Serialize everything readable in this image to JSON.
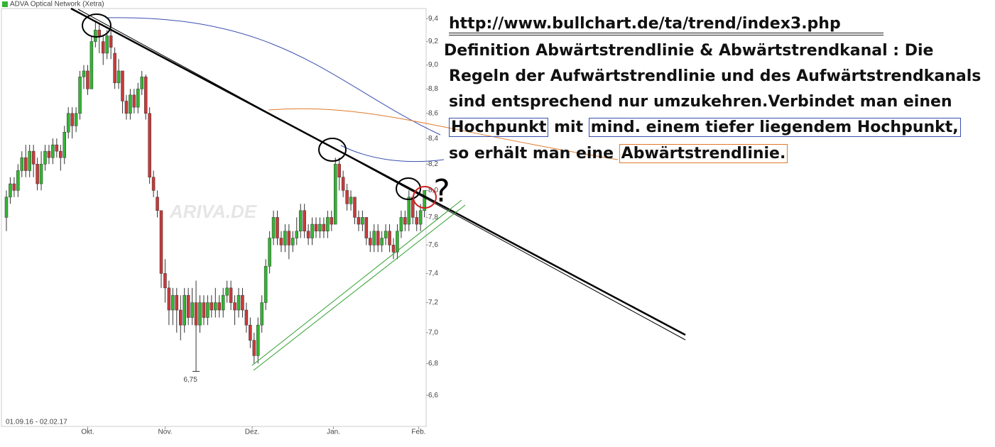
{
  "chart_data": {
    "type": "candlestick",
    "title": "ADVA Optical Network (Xetra)",
    "subtitle": "01.09.16 - 02.02.17",
    "watermark": "ARIVA.DE",
    "log_scale": true,
    "grid": false,
    "up_color": "#33b533",
    "down_color": "#c83a3a",
    "open": [
      7.8,
      7.95,
      8.05,
      8.0,
      8.15,
      8.25,
      8.15,
      8.3,
      8.2,
      8.05,
      8.2,
      8.3,
      8.25,
      8.35,
      8.3,
      8.25,
      8.45,
      8.6,
      8.5,
      8.6,
      8.9,
      8.95,
      8.8,
      9.2,
      9.3,
      9.2,
      9.1,
      9.25,
      9.1,
      8.85,
      8.95,
      8.7,
      8.6,
      8.75,
      8.65,
      8.8,
      8.9,
      8.6,
      8.1,
      7.95,
      7.85,
      7.4,
      7.3,
      7.15,
      7.25,
      7.15,
      7.05,
      7.25,
      7.1,
      7.2,
      7.05,
      7.2,
      7.1,
      7.2,
      7.15,
      7.2,
      7.15,
      7.25,
      7.3,
      7.2,
      7.15,
      7.25,
      7.15,
      7.05,
      6.95,
      6.85,
      7.05,
      7.2,
      7.45,
      7.65,
      7.8,
      7.65,
      7.6,
      7.7,
      7.6,
      7.65,
      7.7,
      7.85,
      7.7,
      7.65,
      7.75,
      7.7,
      7.75,
      7.7,
      7.8,
      7.75,
      8.2,
      8.1,
      8.0,
      7.9,
      7.95,
      7.8,
      7.75,
      7.8,
      7.65,
      7.6,
      7.7,
      7.6,
      7.65,
      7.7,
      7.6,
      7.55,
      7.7,
      7.8,
      7.75,
      7.95,
      7.8,
      7.75,
      7.85
    ],
    "close": [
      7.95,
      8.05,
      8.0,
      8.15,
      8.25,
      8.15,
      8.3,
      8.2,
      8.05,
      8.2,
      8.3,
      8.25,
      8.35,
      8.3,
      8.25,
      8.45,
      8.6,
      8.5,
      8.6,
      8.9,
      8.95,
      8.8,
      9.2,
      9.3,
      9.25,
      9.1,
      9.25,
      9.15,
      8.85,
      8.95,
      8.7,
      8.6,
      8.75,
      8.65,
      8.8,
      8.9,
      8.6,
      8.1,
      8.0,
      7.85,
      7.4,
      7.3,
      7.15,
      7.25,
      7.15,
      7.05,
      7.25,
      7.1,
      7.2,
      7.05,
      7.2,
      7.1,
      7.2,
      7.15,
      7.2,
      7.15,
      7.25,
      7.3,
      7.2,
      7.15,
      7.25,
      7.15,
      7.05,
      6.95,
      6.85,
      7.05,
      7.2,
      7.45,
      7.65,
      7.8,
      7.65,
      7.6,
      7.7,
      7.6,
      7.65,
      7.7,
      7.85,
      7.7,
      7.65,
      7.75,
      7.7,
      7.75,
      7.7,
      7.8,
      7.75,
      8.2,
      8.1,
      8.0,
      7.9,
      7.95,
      7.8,
      7.75,
      7.8,
      7.65,
      7.6,
      7.7,
      7.6,
      7.65,
      7.7,
      7.6,
      7.55,
      7.7,
      7.8,
      7.75,
      7.95,
      7.8,
      7.75,
      7.85,
      8.0
    ],
    "high": [
      8.0,
      8.1,
      8.1,
      8.2,
      8.3,
      8.35,
      8.35,
      8.35,
      8.25,
      8.3,
      8.35,
      8.35,
      8.4,
      8.4,
      8.35,
      8.5,
      8.65,
      8.65,
      8.65,
      8.95,
      9.0,
      9.0,
      9.25,
      9.38,
      9.35,
      9.25,
      9.3,
      9.3,
      9.15,
      9.05,
      8.95,
      8.75,
      8.8,
      8.8,
      8.85,
      8.95,
      8.92,
      8.65,
      8.15,
      8.0,
      7.85,
      7.5,
      7.35,
      7.3,
      7.3,
      7.25,
      7.3,
      7.3,
      7.3,
      7.35,
      7.25,
      7.25,
      7.25,
      7.25,
      7.3,
      7.25,
      7.3,
      7.35,
      7.35,
      7.25,
      7.3,
      7.3,
      7.2,
      7.1,
      7.0,
      7.1,
      7.25,
      7.5,
      7.7,
      7.85,
      7.85,
      7.7,
      7.75,
      7.75,
      7.7,
      7.8,
      7.9,
      7.9,
      7.75,
      7.8,
      7.8,
      7.8,
      7.8,
      7.85,
      7.85,
      8.25,
      8.25,
      8.15,
      8.05,
      8.0,
      7.95,
      7.85,
      7.85,
      7.8,
      7.7,
      7.75,
      7.75,
      7.7,
      7.75,
      7.75,
      7.65,
      7.75,
      7.85,
      7.85,
      8.0,
      7.95,
      7.85,
      7.9,
      8.0
    ],
    "low": [
      7.7,
      7.9,
      7.95,
      7.95,
      8.1,
      8.1,
      8.1,
      8.1,
      8.0,
      8.0,
      8.15,
      8.2,
      8.2,
      8.25,
      8.15,
      8.2,
      8.4,
      8.4,
      8.45,
      8.55,
      8.8,
      8.75,
      8.8,
      9.15,
      9.1,
      9.0,
      9.05,
      9.05,
      8.8,
      8.8,
      8.6,
      8.55,
      8.55,
      8.6,
      8.6,
      8.75,
      8.55,
      8.05,
      7.95,
      7.8,
      7.3,
      7.2,
      7.05,
      7.05,
      7.0,
      6.95,
      7.0,
      7.05,
      7.05,
      6.75,
      7.0,
      7.05,
      7.05,
      7.1,
      7.1,
      7.1,
      7.1,
      7.2,
      7.15,
      7.05,
      7.1,
      7.1,
      7.0,
      6.9,
      6.8,
      6.8,
      7.0,
      7.15,
      7.4,
      7.6,
      7.6,
      7.55,
      7.55,
      7.5,
      7.55,
      7.6,
      7.65,
      7.65,
      7.6,
      7.6,
      7.65,
      7.65,
      7.65,
      7.65,
      7.7,
      7.75,
      8.0,
      7.95,
      7.85,
      7.85,
      7.75,
      7.7,
      7.7,
      7.6,
      7.55,
      7.55,
      7.55,
      7.55,
      7.6,
      7.55,
      7.5,
      7.5,
      7.65,
      7.7,
      7.7,
      7.75,
      7.7,
      7.7,
      7.8
    ],
    "low_label": {
      "value": 6.75,
      "label": "6,75"
    },
    "ylim": [
      6.41,
      9.49
    ],
    "yticks": [
      {
        "value": 6.6,
        "label": "6,6"
      },
      {
        "value": 6.8,
        "label": "6,8"
      },
      {
        "value": 7.0,
        "label": "7,0"
      },
      {
        "value": 7.2,
        "label": "7,2"
      },
      {
        "value": 7.4,
        "label": "7,4"
      },
      {
        "value": 7.6,
        "label": "7,6"
      },
      {
        "value": 7.8,
        "label": "7,8"
      },
      {
        "value": 8.0,
        "label": "8,0"
      },
      {
        "value": 8.2,
        "label": "8,2"
      },
      {
        "value": 8.4,
        "label": "8,4"
      },
      {
        "value": 8.6,
        "label": "8,6"
      },
      {
        "value": 8.8,
        "label": "8,8"
      },
      {
        "value": 9.0,
        "label": "9,0"
      },
      {
        "value": 9.2,
        "label": "9,2"
      },
      {
        "value": 9.4,
        "label": "9,4"
      }
    ],
    "xticks": [
      {
        "value": 21,
        "label": "Okt."
      },
      {
        "value": 41,
        "label": "Nov."
      },
      {
        "value": 63.5,
        "label": "Dez."
      },
      {
        "value": 84.5,
        "label": "Jan."
      },
      {
        "value": 106.5,
        "label": "Feb."
      }
    ]
  },
  "note": {
    "link": "http://www.bullchart.de/ta/trend/index3.php",
    "lines": [
      [
        "Definition Abwärtstrendlinie & Abwärtstrendkanal : Die"
      ],
      [
        "Regeln der Aufwärtstrendlinie und des Aufwärtstrendkanals"
      ],
      [
        "sind entsprechend nur umzukehren.Verbindet man einen"
      ],
      [
        "Hochpunkt",
        " mit ",
        "mind. einem tiefer liegendem Hochpunkt,"
      ],
      [
        "so erhält man eine ",
        "Abwärtstrendlinie."
      ]
    ],
    "question": "?"
  }
}
